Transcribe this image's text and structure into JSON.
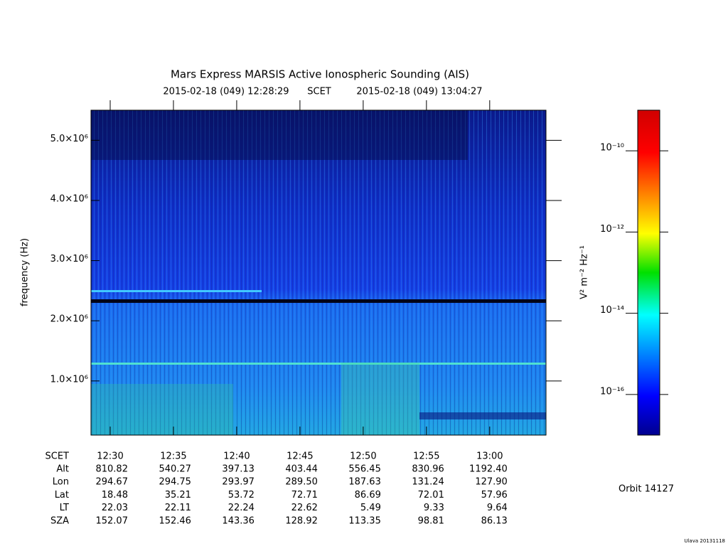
{
  "chart_data": {
    "type": "spectrogram",
    "title": "Mars Express MARSIS Active Ionospheric Sounding (AIS)",
    "start_label": "2015-02-18 (049) 12:28:29",
    "time_system": "SCET",
    "end_label": "2015-02-18 (049) 13:04:27",
    "y_label": "frequency (Hz)",
    "xlim": [
      "12:28:29",
      "13:04:27"
    ],
    "xticks": [
      "12:30",
      "12:35",
      "12:40",
      "12:45",
      "12:50",
      "12:55",
      "13:00"
    ],
    "ylim": [
      100000,
      5500000
    ],
    "yticks": [
      {
        "value": 1000000,
        "label": "1.0×10⁶"
      },
      {
        "value": 2000000,
        "label": "2.0×10⁶"
      },
      {
        "value": 3000000,
        "label": "3.0×10⁶"
      },
      {
        "value": 4000000,
        "label": "4.0×10⁶"
      },
      {
        "value": 5000000,
        "label": "5.0×10⁶"
      }
    ],
    "colorbar": {
      "label": "V² m⁻² Hz⁻¹",
      "log_scale": true,
      "lim": [
        1e-17,
        1e-09
      ],
      "ticks": [
        {
          "value": 1e-16,
          "label": "10⁻¹⁶"
        },
        {
          "value": 1e-14,
          "label": "10⁻¹⁴"
        },
        {
          "value": 1e-12,
          "label": "10⁻¹²"
        },
        {
          "value": 1e-10,
          "label": "10⁻¹⁰"
        }
      ]
    },
    "ephemeris": {
      "time_label": "SCET",
      "rows": [
        {
          "name": "Alt",
          "values": [
            "810.82",
            "540.27",
            "397.13",
            "403.44",
            "556.45",
            "830.96",
            "1192.40"
          ]
        },
        {
          "name": "Lon",
          "values": [
            "294.67",
            "294.75",
            "293.97",
            "289.50",
            "187.63",
            "131.24",
            "127.90"
          ]
        },
        {
          "name": "Lat",
          "values": [
            "18.48",
            "35.21",
            "53.72",
            "72.71",
            "86.69",
            "72.01",
            "57.96"
          ]
        },
        {
          "name": "LT",
          "values": [
            "22.03",
            "22.11",
            "22.24",
            "22.62",
            "5.49",
            "9.33",
            "9.64"
          ]
        },
        {
          "name": "SZA",
          "values": [
            "152.07",
            "152.46",
            "143.36",
            "128.92",
            "113.35",
            "98.81",
            "86.13"
          ]
        }
      ]
    },
    "orbit": "Orbit 14127",
    "footer": "Ulava 20131118"
  }
}
